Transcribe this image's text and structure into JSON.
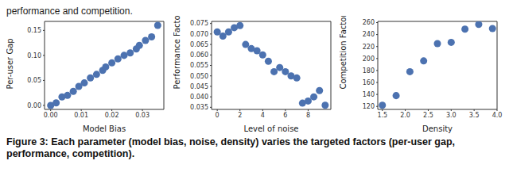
{
  "header": "performance and competition.",
  "caption": "Figure 3: Each parameter (model bias, noise, density) varies the targeted factors (per-user gap, performance, competition).",
  "chart_data": [
    {
      "type": "scatter",
      "x_label": "Model Bias",
      "y_label": "Per-user Gap",
      "color": "#4c72b0",
      "marker": "circle",
      "grid": false,
      "x": [
        0,
        0.0018,
        0.0037,
        0.0055,
        0.0074,
        0.0092,
        0.011,
        0.013,
        0.015,
        0.017,
        0.018,
        0.02,
        0.022,
        0.024,
        0.026,
        0.028,
        0.029,
        0.031,
        0.033,
        0.035
      ],
      "values": [
        0,
        0.005,
        0.017,
        0.02,
        0.028,
        0.038,
        0.045,
        0.055,
        0.062,
        0.07,
        0.077,
        0.085,
        0.093,
        0.1,
        0.105,
        0.113,
        0.12,
        0.13,
        0.137,
        0.16
      ],
      "xlim": [
        -0.002,
        0.037
      ],
      "xticks": [
        {
          "value": 0,
          "label": "0.00"
        },
        {
          "value": 0.01,
          "label": "0.01"
        },
        {
          "value": 0.02,
          "label": "0.02"
        },
        {
          "value": 0.03,
          "label": "0.03"
        }
      ],
      "ylim": [
        -0.008,
        0.168
      ],
      "yticks": [
        {
          "value": 0,
          "label": "0.00"
        },
        {
          "value": 0.05,
          "label": "0.05"
        },
        {
          "value": 0.1,
          "label": "0.10"
        },
        {
          "value": 0.15,
          "label": "0.15"
        }
      ]
    },
    {
      "type": "scatter",
      "x_label": "Level of noise",
      "y_label": "Performance Factor",
      "color": "#4c72b0",
      "marker": "circle",
      "grid": false,
      "x": [
        0,
        0.5,
        1,
        1.5,
        2,
        2.5,
        3,
        3.5,
        4,
        4.5,
        5,
        5.5,
        6,
        6.5,
        7,
        7.5,
        8,
        8.5,
        9,
        9.5
      ],
      "values": [
        0.071,
        0.069,
        0.071,
        0.073,
        0.074,
        0.065,
        0.063,
        0.062,
        0.06,
        0.057,
        0.052,
        0.054,
        0.052,
        0.05,
        0.049,
        0.037,
        0.038,
        0.04,
        0.043,
        0.036
      ],
      "xlim": [
        -0.5,
        10
      ],
      "xticks": [
        0,
        2,
        4,
        6,
        8
      ],
      "ylim": [
        0.034,
        0.076
      ],
      "yticks": [
        0.035,
        {
          "value": 0.04,
          "label": "0.040"
        },
        0.045,
        {
          "value": 0.05,
          "label": "0.050"
        },
        0.055,
        {
          "value": 0.06,
          "label": "0.060"
        },
        0.065,
        {
          "value": 0.07,
          "label": "0.070"
        },
        0.075
      ]
    },
    {
      "type": "scatter",
      "x_label": "Density",
      "y_label": "Competition Factor",
      "color": "#4c72b0",
      "marker": "circle",
      "grid": false,
      "x": [
        1.5,
        1.8,
        2.1,
        2.4,
        2.7,
        3.0,
        3.3,
        3.6,
        3.9
      ],
      "values": [
        122,
        138,
        178,
        196,
        225,
        227,
        249,
        257,
        250
      ],
      "xlim": [
        1.4,
        4.0
      ],
      "xticks": [
        1.5,
        {
          "value": 2,
          "label": "2.0"
        },
        2.5,
        {
          "value": 3,
          "label": "3.0"
        },
        3.5,
        {
          "value": 4,
          "label": "4.0"
        }
      ],
      "ylim": [
        115,
        262
      ],
      "yticks": [
        120,
        140,
        160,
        180,
        200,
        220,
        240,
        260
      ]
    }
  ]
}
